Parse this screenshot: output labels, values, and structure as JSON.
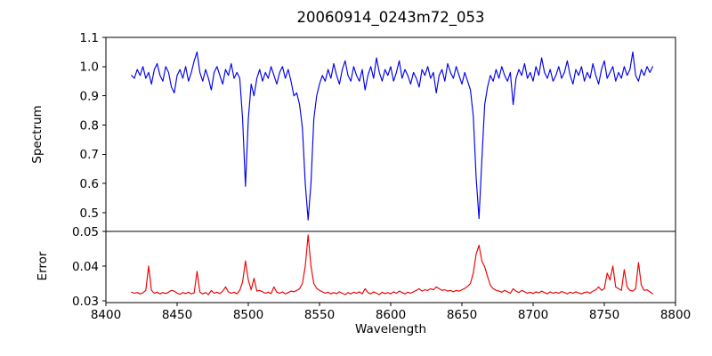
{
  "figure": {
    "title": "20060914_0243m72_053",
    "xlabel": "Wavelength",
    "background": "#ffffff",
    "spine_color": "#000000"
  },
  "chart_data": [
    {
      "type": "line",
      "name": "spectrum",
      "ylabel": "Spectrum",
      "color": "#0000ee",
      "xlim": [
        8400,
        8800
      ],
      "ylim": [
        0.436,
        1.1
      ],
      "yticks": [
        1.1,
        1.0,
        0.9,
        0.8,
        0.7,
        0.6,
        0.5
      ],
      "ytick_labels": [
        "1.1",
        "1.0",
        "0.9",
        "0.8",
        "0.7",
        "0.6",
        "0.5"
      ],
      "grid": false,
      "x_start": 8418,
      "x_step": 2,
      "values": [
        0.97,
        0.96,
        0.99,
        0.97,
        1.0,
        0.96,
        0.98,
        0.94,
        0.99,
        1.01,
        0.97,
        0.95,
        1.0,
        0.98,
        0.93,
        0.91,
        0.97,
        0.99,
        0.96,
        1.0,
        0.95,
        0.98,
        1.02,
        1.05,
        0.98,
        0.95,
        0.99,
        0.96,
        0.92,
        0.98,
        1.0,
        0.97,
        0.94,
        0.99,
        0.97,
        1.01,
        0.96,
        0.98,
        0.96,
        0.82,
        0.59,
        0.82,
        0.94,
        0.9,
        0.96,
        0.99,
        0.95,
        0.98,
        0.96,
        1.0,
        0.97,
        0.94,
        0.98,
        1.0,
        0.96,
        0.99,
        0.95,
        0.9,
        0.91,
        0.87,
        0.79,
        0.6,
        0.475,
        0.6,
        0.82,
        0.9,
        0.94,
        0.97,
        0.95,
        0.99,
        0.96,
        1.01,
        0.97,
        0.94,
        0.99,
        1.02,
        0.97,
        0.95,
        1.0,
        0.97,
        0.95,
        0.99,
        0.92,
        0.97,
        1.0,
        0.96,
        1.03,
        0.98,
        0.95,
        0.99,
        0.97,
        1.0,
        0.95,
        0.98,
        1.02,
        0.96,
        0.99,
        0.97,
        0.94,
        0.98,
        0.96,
        0.93,
        0.99,
        0.97,
        1.0,
        0.96,
        0.98,
        0.91,
        0.97,
        0.99,
        0.95,
        1.01,
        0.98,
        0.96,
        1.0,
        0.97,
        0.94,
        0.98,
        0.95,
        0.92,
        0.83,
        0.62,
        0.48,
        0.68,
        0.87,
        0.93,
        0.97,
        0.95,
        0.99,
        0.96,
        1.0,
        0.97,
        0.95,
        0.98,
        0.87,
        0.96,
        0.99,
        0.97,
        1.01,
        0.96,
        0.98,
        0.95,
        1.0,
        0.97,
        1.03,
        0.98,
        0.96,
        0.99,
        0.95,
        0.97,
        1.0,
        0.96,
        0.98,
        1.02,
        0.97,
        0.94,
        0.99,
        0.97,
        1.0,
        0.95,
        0.98,
        0.96,
        1.01,
        0.97,
        0.94,
        0.99,
        1.02,
        0.96,
        0.98,
        1.0,
        0.95,
        0.98,
        0.96,
        1.0,
        0.97,
        0.99,
        1.05,
        0.97,
        0.95,
        0.99,
        0.97,
        1.0,
        0.98,
        1.0
      ],
      "features": {
        "absorption_lines": [
          {
            "wavelength": 8498,
            "depth": 0.59
          },
          {
            "wavelength": 8542,
            "depth": 0.475
          },
          {
            "wavelength": 8662,
            "depth": 0.48
          }
        ]
      }
    },
    {
      "type": "line",
      "name": "error",
      "ylabel": "Error",
      "xlabel": "Wavelength",
      "color": "#ee0000",
      "xlim": [
        8400,
        8800
      ],
      "ylim": [
        0.0295,
        0.05
      ],
      "yticks": [
        0.05,
        0.04,
        0.03
      ],
      "ytick_labels": [
        "0.05",
        "0.04",
        "0.03"
      ],
      "xticks": [
        8400,
        8450,
        8500,
        8550,
        8600,
        8650,
        8700,
        8750,
        8800
      ],
      "xtick_labels": [
        "8400",
        "8450",
        "8500",
        "8550",
        "8600",
        "8650",
        "8700",
        "8750",
        "8800"
      ],
      "grid": false,
      "x_start": 8418,
      "x_step": 2,
      "values": [
        0.0325,
        0.0322,
        0.0324,
        0.032,
        0.0323,
        0.033,
        0.04,
        0.033,
        0.0322,
        0.0325,
        0.032,
        0.0324,
        0.0321,
        0.0325,
        0.033,
        0.0328,
        0.0322,
        0.0319,
        0.0324,
        0.0321,
        0.0325,
        0.032,
        0.0323,
        0.0385,
        0.0325,
        0.032,
        0.0324,
        0.0318,
        0.033,
        0.0322,
        0.0325,
        0.0321,
        0.0328,
        0.034,
        0.0326,
        0.0322,
        0.0325,
        0.032,
        0.033,
        0.0355,
        0.0415,
        0.036,
        0.0332,
        0.0365,
        0.0328,
        0.033,
        0.0326,
        0.0322,
        0.0325,
        0.0321,
        0.034,
        0.0325,
        0.0322,
        0.0326,
        0.032,
        0.0324,
        0.0328,
        0.0326,
        0.033,
        0.0335,
        0.035,
        0.04,
        0.049,
        0.04,
        0.035,
        0.0336,
        0.033,
        0.0326,
        0.0322,
        0.0325,
        0.032,
        0.0324,
        0.0321,
        0.0326,
        0.0322,
        0.0318,
        0.0324,
        0.032,
        0.0325,
        0.0322,
        0.0326,
        0.032,
        0.0335,
        0.0324,
        0.032,
        0.0326,
        0.0322,
        0.0318,
        0.0325,
        0.0321,
        0.0324,
        0.032,
        0.0326,
        0.0322,
        0.0328,
        0.0324,
        0.032,
        0.0325,
        0.0322,
        0.0326,
        0.033,
        0.0335,
        0.0328,
        0.0332,
        0.033,
        0.0335,
        0.0332,
        0.034,
        0.0335,
        0.033,
        0.0332,
        0.0328,
        0.033,
        0.0326,
        0.033,
        0.0328,
        0.0332,
        0.0336,
        0.0342,
        0.035,
        0.038,
        0.0435,
        0.046,
        0.0415,
        0.0398,
        0.037,
        0.0345,
        0.0335,
        0.033,
        0.0328,
        0.0325,
        0.033,
        0.0326,
        0.0322,
        0.0335,
        0.0328,
        0.0324,
        0.033,
        0.0326,
        0.0322,
        0.0325,
        0.0321,
        0.0326,
        0.0323,
        0.0328,
        0.0324,
        0.032,
        0.0326,
        0.0322,
        0.0325,
        0.0322,
        0.0327,
        0.0324,
        0.032,
        0.0325,
        0.0322,
        0.0326,
        0.0323,
        0.032,
        0.0324,
        0.0326,
        0.0322,
        0.0328,
        0.0332,
        0.034,
        0.033,
        0.0335,
        0.038,
        0.036,
        0.04,
        0.034,
        0.0335,
        0.033,
        0.039,
        0.034,
        0.033,
        0.0328,
        0.0335,
        0.041,
        0.0345,
        0.033,
        0.0332,
        0.0326,
        0.032
      ]
    }
  ]
}
